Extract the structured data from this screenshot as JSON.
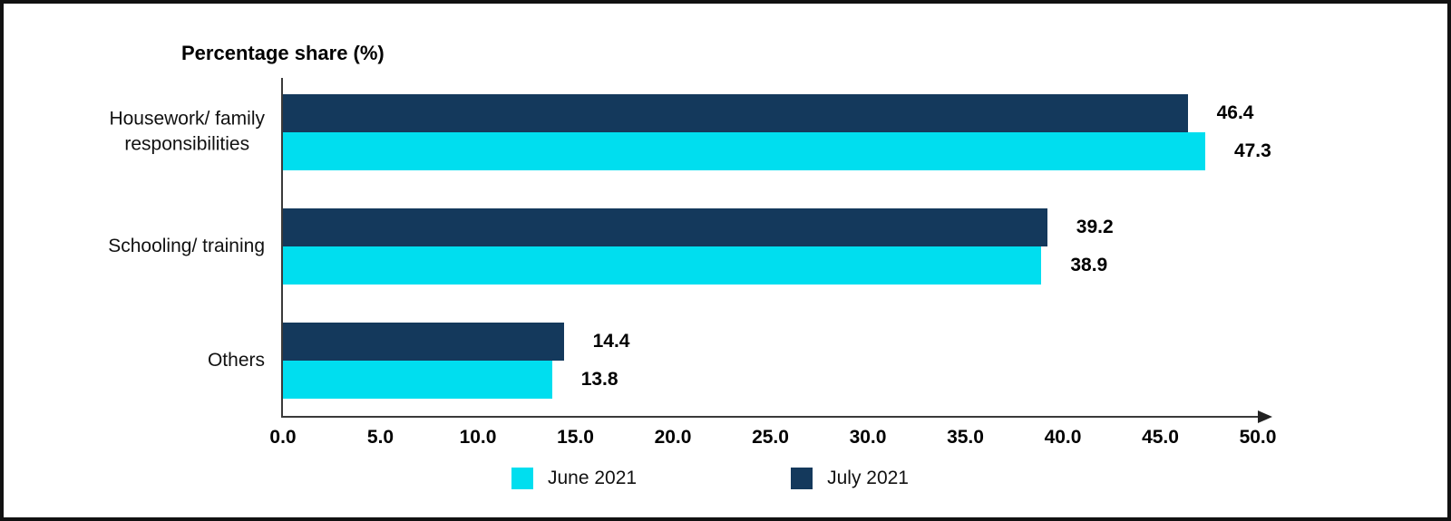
{
  "chart_data": {
    "type": "bar",
    "orientation": "horizontal",
    "title": "Percentage share (%)",
    "categories": [
      "Housework/ family\nresponsibilities",
      "Schooling/ training",
      "Others"
    ],
    "series": [
      {
        "name": "June 2021",
        "color": "#00DEEF",
        "values": [
          47.3,
          38.9,
          13.8
        ]
      },
      {
        "name": "July 2021",
        "color": "#14395C",
        "values": [
          46.4,
          39.2,
          14.4
        ]
      }
    ],
    "bar_order_top_to_bottom": [
      "July 2021",
      "June 2021"
    ],
    "xlim": [
      0,
      50
    ],
    "x_ticks": [
      "0.0",
      "5.0",
      "10.0",
      "15.0",
      "20.0",
      "25.0",
      "30.0",
      "35.0",
      "40.0",
      "45.0",
      "50.0"
    ],
    "value_labels_decimals": 1,
    "grid": false,
    "legend": {
      "position": "bottom",
      "items": [
        "June 2021",
        "July 2021"
      ]
    }
  }
}
